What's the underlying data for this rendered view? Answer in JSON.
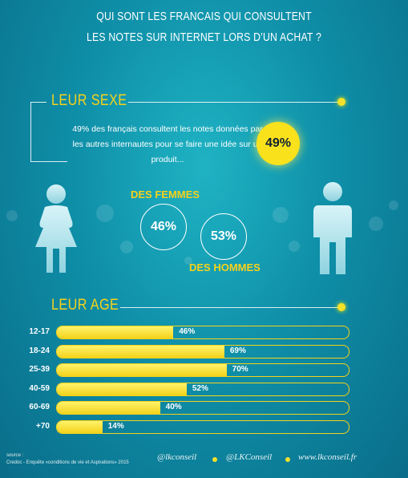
{
  "title": {
    "line1": "QUI SONT LES FRANCAIS QUI CONSULTENT",
    "line2": "LES NOTES SUR INTERNET LORS D’UN ACHAT ?"
  },
  "sex_section": {
    "heading": "LEUR SEXE",
    "intro": "49% des français consultent  les notes données par les  autres internautes pour se  faire une idée sur un produit...",
    "headline_percent": "49%",
    "women_label": "DES FEMMES",
    "women_percent": "46%",
    "men_label": "DES HOMMES",
    "men_percent": "53%",
    "female_icon": "female-figure-icon",
    "male_icon": "male-figure-icon"
  },
  "age_section": {
    "heading": "LEUR AGE"
  },
  "chart_data": {
    "type": "bar",
    "categories": [
      "12-17",
      "18-24",
      "25-39",
      "40-59",
      "60-69",
      "+70"
    ],
    "values": [
      46,
      69,
      70,
      52,
      40,
      14
    ],
    "value_labels": [
      "46%",
      "69%",
      "70%",
      "52%",
      "40%",
      "14%"
    ],
    "xlim": [
      0,
      100
    ],
    "orientation": "horizontal",
    "bar_color": "#f5d21b"
  },
  "footer": {
    "source_label": "source :",
    "source_text": "Credoc - Enquête «conditions de vie et Aspirations» 2015",
    "facebook": "@lkconseil",
    "twitter": "@LKConseil",
    "website": "www.lkconseil.fr"
  },
  "colors": {
    "accent_yellow": "#f5d21b",
    "background_teal": "#0f8fa8"
  }
}
